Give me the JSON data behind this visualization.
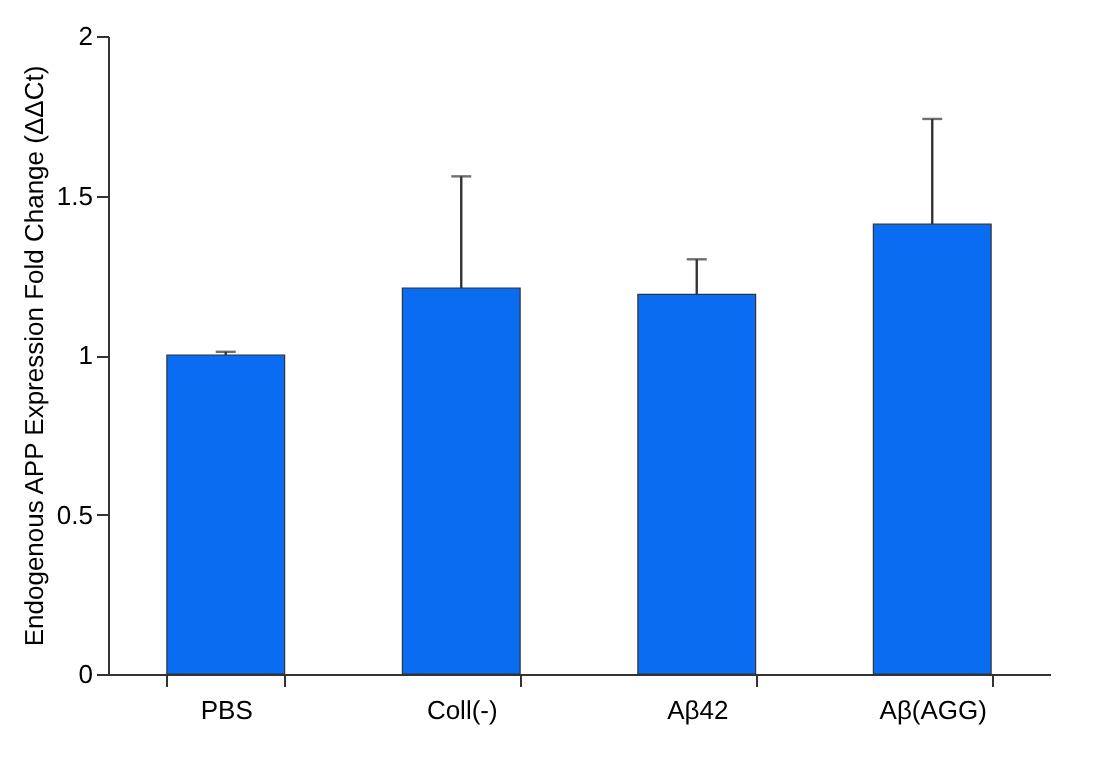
{
  "chart_data": {
    "type": "bar",
    "ylabel": "Endogenous APP Expression Fold Change (ΔΔCt)",
    "categories": [
      "PBS",
      "Coll(-)",
      "Aβ42",
      "Aβ(AGG)"
    ],
    "values": [
      1.0,
      1.21,
      1.19,
      1.41
    ],
    "errors": [
      [
        1.0,
        1.01
      ],
      [
        1.21,
        1.56
      ],
      [
        1.19,
        1.3
      ],
      [
        1.41,
        1.74
      ]
    ],
    "color": "#0a6cf0",
    "ylim": [
      0,
      2
    ],
    "yticks": [
      0,
      0.5,
      1,
      1.5,
      2
    ],
    "grid": false
  }
}
